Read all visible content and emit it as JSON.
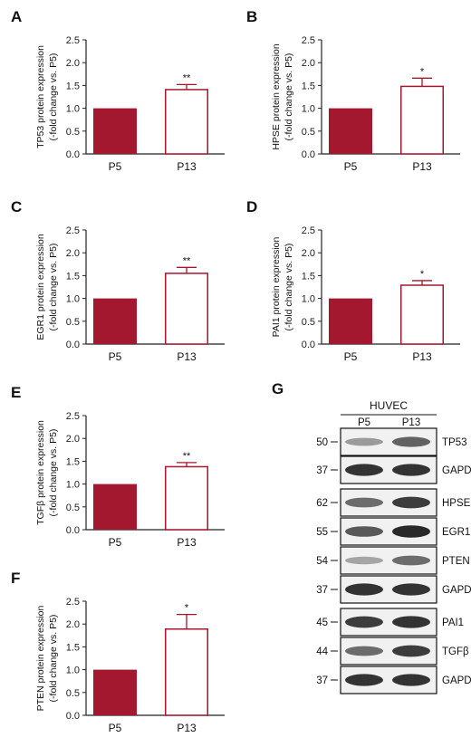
{
  "colors": {
    "filled_bar": "#a3172f",
    "open_bar_stroke": "#a3172f",
    "axis": "#222222"
  },
  "chart_data": [
    {
      "panel": "A",
      "type": "bar",
      "categories": [
        "P5",
        "P13"
      ],
      "values": [
        1.0,
        1.41
      ],
      "errors": [
        0,
        0.11
      ],
      "significance": [
        "",
        "**"
      ],
      "ylabel": "TP53 protein expression",
      "ylabel2": "(-fold change vs. P5)",
      "ylim": [
        0,
        2.5
      ],
      "yticks": [
        "0.0",
        "0.5",
        "1.0",
        "1.5",
        "2.0",
        "2.5"
      ]
    },
    {
      "panel": "B",
      "type": "bar",
      "categories": [
        "P5",
        "P13"
      ],
      "values": [
        1.0,
        1.48
      ],
      "errors": [
        0,
        0.18
      ],
      "significance": [
        "",
        "*"
      ],
      "ylabel": "HPSE protein expression",
      "ylabel2": "(-fold change vs. P5)",
      "ylim": [
        0,
        2.5
      ],
      "yticks": [
        "0.0",
        "0.5",
        "1.0",
        "1.5",
        "2.0",
        "2.5"
      ]
    },
    {
      "panel": "C",
      "type": "bar",
      "categories": [
        "P5",
        "P13"
      ],
      "values": [
        1.0,
        1.55
      ],
      "errors": [
        0,
        0.13
      ],
      "significance": [
        "",
        "**"
      ],
      "ylabel": "EGR1 protein expression",
      "ylabel2": "(-fold change vs. P5)",
      "ylim": [
        0,
        2.5
      ],
      "yticks": [
        "0.0",
        "0.5",
        "1.0",
        "1.5",
        "2.0",
        "2.5"
      ]
    },
    {
      "panel": "D",
      "type": "bar",
      "categories": [
        "P5",
        "P13"
      ],
      "values": [
        1.0,
        1.29
      ],
      "errors": [
        0,
        0.1
      ],
      "significance": [
        "",
        "*"
      ],
      "ylabel": "PAI1 protein expression",
      "ylabel2": "(-fold change vs. P5)",
      "ylim": [
        0,
        2.5
      ],
      "yticks": [
        "0.0",
        "0.5",
        "1.0",
        "1.5",
        "2.0",
        "2.5"
      ]
    },
    {
      "panel": "E",
      "type": "bar",
      "categories": [
        "P5",
        "P13"
      ],
      "values": [
        1.0,
        1.38
      ],
      "errors": [
        0,
        0.09
      ],
      "significance": [
        "",
        "**"
      ],
      "ylabel": "TGFβ protein expression",
      "ylabel2": "(-fold change vs. P5)",
      "ylim": [
        0,
        2.5
      ],
      "yticks": [
        "0.0",
        "0.5",
        "1.0",
        "1.5",
        "2.0",
        "2.5"
      ]
    },
    {
      "panel": "F",
      "type": "bar",
      "categories": [
        "P5",
        "P13"
      ],
      "values": [
        1.0,
        1.89
      ],
      "errors": [
        0,
        0.32
      ],
      "significance": [
        "",
        "*"
      ],
      "ylabel": "PTEN protein expression",
      "ylabel2": "(-fold change vs. P5)",
      "ylim": [
        0,
        2.5
      ],
      "yticks": [
        "0.0",
        "0.5",
        "1.0",
        "1.5",
        "2.0",
        "2.5"
      ]
    }
  ],
  "blot": {
    "letter": "G",
    "cell_label": "HUVEC",
    "lanes": [
      "P5",
      "P13"
    ],
    "rows": [
      {
        "mw": "50",
        "protein": "TP53",
        "p5": 0.35,
        "p13": 0.65
      },
      {
        "mw": "37",
        "protein": "GAPDH",
        "p5": 0.9,
        "p13": 0.9
      },
      {
        "mw": "62",
        "protein": "HPSE",
        "p5": 0.6,
        "p13": 0.85
      },
      {
        "mw": "55",
        "protein": "EGR1",
        "p5": 0.7,
        "p13": 0.95
      },
      {
        "mw": "54",
        "protein": "PTEN",
        "p5": 0.3,
        "p13": 0.6
      },
      {
        "mw": "37",
        "protein": "GAPDH",
        "p5": 0.9,
        "p13": 0.9
      },
      {
        "mw": "45",
        "protein": "PAI1",
        "p5": 0.85,
        "p13": 0.9
      },
      {
        "mw": "44",
        "protein": "TGFβ",
        "p5": 0.6,
        "p13": 0.85
      },
      {
        "mw": "37",
        "protein": "GAPDH",
        "p5": 0.9,
        "p13": 0.9
      }
    ]
  }
}
